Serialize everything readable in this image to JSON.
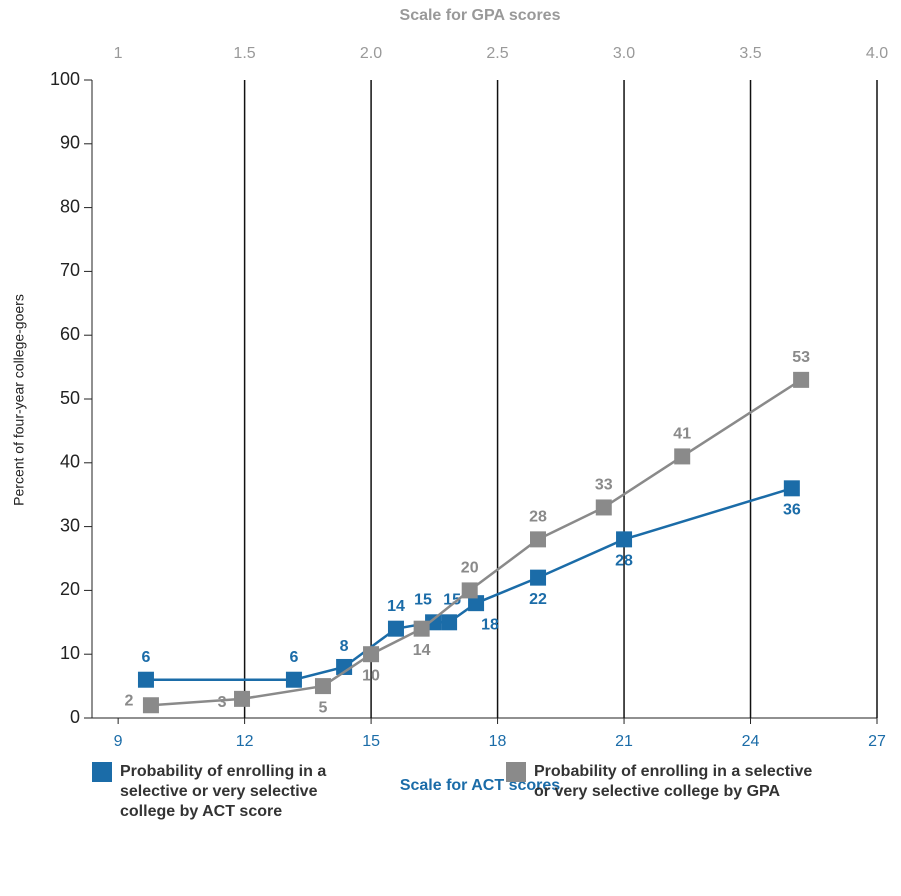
{
  "chart_data": {
    "type": "line",
    "xlabel": "Scale for ACT scores",
    "x2label": "Scale for GPA scores",
    "ylabel": "Percent of four-year college-goers",
    "xlim": [
      8.38,
      27
    ],
    "xticks": [
      9,
      12,
      15,
      18,
      21,
      24,
      27
    ],
    "x2lim": [
      0.897,
      4.0
    ],
    "x2ticks": [
      1,
      1.5,
      {
        "value": 2,
        "label": "2.0"
      },
      2.5,
      {
        "value": 3,
        "label": "3.0"
      },
      3.5,
      {
        "value": 4,
        "label": "4.0"
      }
    ],
    "ylim": [
      0,
      100
    ],
    "yticks": [
      0,
      10,
      20,
      30,
      40,
      50,
      60,
      70,
      80,
      90,
      100
    ],
    "grid": true,
    "series": [
      {
        "name": "Probability of enrolling in a selective or very selective college by ACT score",
        "color": "#1b6ca8",
        "axis": "x",
        "x": [
          9.66,
          13.17,
          14.36,
          15.59,
          16.47,
          16.85,
          17.49,
          18.96,
          21.0,
          24.98
        ],
        "values": [
          6,
          6,
          8,
          14,
          15,
          15,
          18,
          22,
          28,
          36
        ]
      },
      {
        "name": "Probability of enrolling in a selective or very selective college by GPA",
        "color": "#8a8a8a",
        "axis": "x2",
        "x": [
          1.13,
          1.49,
          1.81,
          2.0,
          2.2,
          2.39,
          2.66,
          2.92,
          3.23,
          3.7
        ],
        "values": [
          2,
          3,
          5,
          10,
          14,
          20,
          28,
          33,
          41,
          53
        ]
      }
    ]
  }
}
